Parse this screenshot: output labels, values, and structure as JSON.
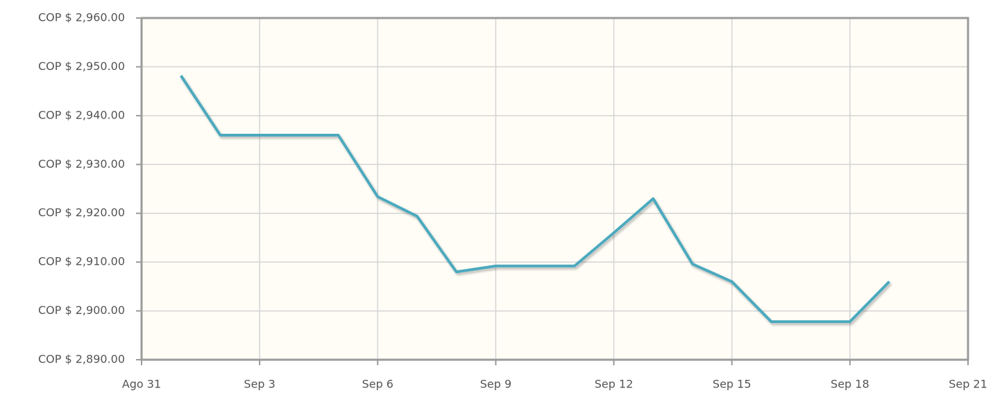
{
  "chart_data": {
    "type": "line",
    "x": [
      1,
      2,
      3,
      4,
      5,
      6,
      7,
      8,
      9,
      10,
      11,
      12,
      13,
      14,
      15,
      16,
      17,
      18,
      19
    ],
    "series": [
      {
        "color": "#4ba9be",
        "values": [
          2948.2,
          2936,
          2936,
          2936,
          2936,
          2923.4,
          2919.4,
          2908,
          2909.2,
          2909.2,
          2909.2,
          2916,
          2923,
          2909.6,
          2906,
          2897.8,
          2897.8,
          2897.8,
          2906
        ]
      }
    ],
    "xlim": [
      0,
      21
    ],
    "xticks": [
      {
        "value": 0,
        "label": "Ago 31"
      },
      {
        "value": 3,
        "label": "Sep 3"
      },
      {
        "value": 6,
        "label": "Sep 6"
      },
      {
        "value": 9,
        "label": "Sep 9"
      },
      {
        "value": 12,
        "label": "Sep 12"
      },
      {
        "value": 15,
        "label": "Sep 15"
      },
      {
        "value": 18,
        "label": "Sep 18"
      },
      {
        "value": 21,
        "label": "Sep 21"
      }
    ],
    "ylim": [
      2890,
      2960
    ],
    "yticks": [
      {
        "value": 2890,
        "label": "COP $ 2,890.00"
      },
      {
        "value": 2900,
        "label": "COP $ 2,900.00"
      },
      {
        "value": 2910,
        "label": "COP $ 2,910.00"
      },
      {
        "value": 2920,
        "label": "COP $ 2,920.00"
      },
      {
        "value": 2930,
        "label": "COP $ 2,930.00"
      },
      {
        "value": 2940,
        "label": "COP $ 2,940.00"
      },
      {
        "value": 2950,
        "label": "COP $ 2,950.00"
      },
      {
        "value": 2960,
        "label": "COP $ 2,960.00"
      }
    ],
    "grid": true
  }
}
